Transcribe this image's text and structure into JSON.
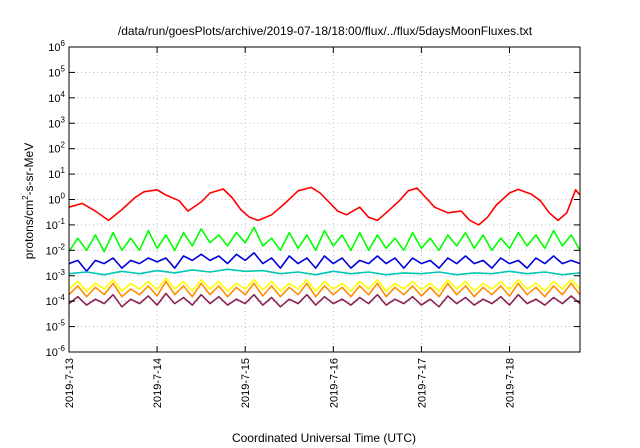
{
  "chart_data": {
    "type": "line",
    "title": "/data/run/goesPlots/archive/2019-07-18/18:00/flux/../flux/5daysMoonFluxes.txt",
    "xlabel": "Coordinated Universal Time (UTC)",
    "ylabel": "protons/cm2-s-sr-MeV",
    "ylabel_parts": {
      "pre": "protons/cm",
      "sup": "2",
      "post": "-s-sr-MeV"
    },
    "yscale": "log",
    "ylim": [
      1e-06,
      1000000.0
    ],
    "xlim": [
      0,
      5.8
    ],
    "grid": true,
    "x_unit": "days since 2019-7-13 00:00 UTC",
    "categories": [
      "2019-7-13",
      "2019-7-14",
      "2019-7-15",
      "2019-7-16",
      "2019-7-17",
      "2019-7-18"
    ],
    "y_ticks": [
      {
        "base": "10",
        "exp": "-6",
        "value": 1e-06
      },
      {
        "base": "10",
        "exp": "-5",
        "value": 1e-05
      },
      {
        "base": "10",
        "exp": "-4",
        "value": 0.0001
      },
      {
        "base": "10",
        "exp": "-3",
        "value": 0.001
      },
      {
        "base": "10",
        "exp": "-2",
        "value": 0.01
      },
      {
        "base": "10",
        "exp": "-1",
        "value": 0.1
      },
      {
        "base": "10",
        "exp": "0",
        "value": 1
      },
      {
        "base": "10",
        "exp": "1",
        "value": 10
      },
      {
        "base": "10",
        "exp": "2",
        "value": 100
      },
      {
        "base": "10",
        "exp": "3",
        "value": 1000
      },
      {
        "base": "10",
        "exp": "4",
        "value": 10000
      },
      {
        "base": "10",
        "exp": "5",
        "value": 100000
      },
      {
        "base": "10",
        "exp": "6",
        "value": 1000000
      }
    ],
    "series": [
      {
        "color": "#ff0000",
        "x": [
          0,
          0.15,
          0.3,
          0.45,
          0.6,
          0.75,
          0.85,
          1.0,
          1.1,
          1.25,
          1.35,
          1.5,
          1.6,
          1.75,
          1.85,
          1.95,
          2.05,
          2.15,
          2.3,
          2.45,
          2.6,
          2.75,
          2.85,
          2.95,
          3.05,
          3.15,
          3.3,
          3.4,
          3.5,
          3.6,
          3.75,
          3.85,
          3.95,
          4.05,
          4.15,
          4.3,
          4.45,
          4.55,
          4.65,
          4.75,
          4.85,
          5.0,
          5.1,
          5.25,
          5.35,
          5.45,
          5.55,
          5.65,
          5.75,
          5.8
        ],
        "y": [
          0.5,
          0.7,
          0.35,
          0.15,
          0.4,
          1.2,
          2.0,
          2.4,
          1.5,
          0.9,
          0.35,
          0.8,
          1.8,
          2.6,
          1.2,
          0.4,
          0.2,
          0.15,
          0.25,
          0.7,
          2.2,
          3.0,
          1.8,
          0.8,
          0.35,
          0.25,
          0.5,
          0.2,
          0.15,
          0.3,
          0.9,
          2.2,
          2.8,
          1.2,
          0.5,
          0.3,
          0.35,
          0.15,
          0.1,
          0.2,
          0.6,
          1.8,
          2.5,
          1.6,
          0.9,
          0.3,
          0.15,
          0.3,
          2.4,
          1.5
        ]
      },
      {
        "color": "#00ff00",
        "x": [
          0,
          0.1,
          0.2,
          0.3,
          0.4,
          0.5,
          0.6,
          0.7,
          0.8,
          0.9,
          1.0,
          1.1,
          1.2,
          1.3,
          1.4,
          1.5,
          1.6,
          1.7,
          1.8,
          1.9,
          2.0,
          2.1,
          2.2,
          2.3,
          2.4,
          2.5,
          2.6,
          2.7,
          2.8,
          2.9,
          3.0,
          3.1,
          3.2,
          3.3,
          3.4,
          3.5,
          3.6,
          3.7,
          3.8,
          3.9,
          4.0,
          4.1,
          4.2,
          4.3,
          4.4,
          4.5,
          4.6,
          4.7,
          4.8,
          4.9,
          5.0,
          5.1,
          5.2,
          5.3,
          5.4,
          5.5,
          5.6,
          5.7,
          5.8
        ],
        "y": [
          0.009,
          0.03,
          0.01,
          0.04,
          0.009,
          0.05,
          0.01,
          0.03,
          0.01,
          0.06,
          0.012,
          0.04,
          0.01,
          0.05,
          0.015,
          0.07,
          0.02,
          0.04,
          0.015,
          0.05,
          0.02,
          0.08,
          0.015,
          0.03,
          0.01,
          0.05,
          0.012,
          0.04,
          0.01,
          0.06,
          0.015,
          0.04,
          0.01,
          0.05,
          0.01,
          0.04,
          0.012,
          0.03,
          0.01,
          0.05,
          0.012,
          0.03,
          0.01,
          0.04,
          0.015,
          0.05,
          0.012,
          0.04,
          0.01,
          0.03,
          0.012,
          0.05,
          0.015,
          0.04,
          0.012,
          0.06,
          0.015,
          0.04,
          0.01
        ]
      },
      {
        "color": "#0000dd",
        "x": [
          0,
          0.1,
          0.2,
          0.3,
          0.4,
          0.5,
          0.6,
          0.7,
          0.8,
          0.9,
          1.0,
          1.1,
          1.2,
          1.3,
          1.4,
          1.5,
          1.6,
          1.7,
          1.8,
          1.9,
          2.0,
          2.1,
          2.2,
          2.3,
          2.4,
          2.5,
          2.6,
          2.7,
          2.8,
          2.9,
          3.0,
          3.1,
          3.2,
          3.3,
          3.4,
          3.5,
          3.6,
          3.7,
          3.8,
          3.9,
          4.0,
          4.1,
          4.2,
          4.3,
          4.4,
          4.5,
          4.6,
          4.7,
          4.8,
          4.9,
          5.0,
          5.1,
          5.2,
          5.3,
          5.4,
          5.5,
          5.6,
          5.7,
          5.8
        ],
        "y": [
          0.003,
          0.004,
          0.0015,
          0.004,
          0.003,
          0.005,
          0.002,
          0.004,
          0.003,
          0.005,
          0.0035,
          0.005,
          0.002,
          0.006,
          0.004,
          0.007,
          0.004,
          0.006,
          0.003,
          0.007,
          0.004,
          0.008,
          0.003,
          0.005,
          0.002,
          0.006,
          0.003,
          0.005,
          0.002,
          0.006,
          0.003,
          0.005,
          0.002,
          0.004,
          0.003,
          0.006,
          0.003,
          0.005,
          0.002,
          0.005,
          0.003,
          0.004,
          0.002,
          0.005,
          0.003,
          0.006,
          0.003,
          0.004,
          0.002,
          0.005,
          0.003,
          0.004,
          0.002,
          0.005,
          0.003,
          0.006,
          0.003,
          0.004,
          0.003
        ]
      },
      {
        "color": "#00c8b4",
        "x": [
          0,
          0.2,
          0.4,
          0.6,
          0.8,
          1.0,
          1.2,
          1.4,
          1.6,
          1.8,
          2.0,
          2.2,
          2.4,
          2.6,
          2.8,
          3.0,
          3.2,
          3.4,
          3.6,
          3.8,
          4.0,
          4.2,
          4.4,
          4.6,
          4.8,
          5.0,
          5.2,
          5.4,
          5.6,
          5.8
        ],
        "y": [
          0.0012,
          0.0014,
          0.0011,
          0.0015,
          0.0012,
          0.0016,
          0.0013,
          0.0017,
          0.0014,
          0.0018,
          0.0015,
          0.0016,
          0.0012,
          0.0014,
          0.0011,
          0.0015,
          0.0012,
          0.0014,
          0.0011,
          0.0013,
          0.0012,
          0.0014,
          0.0011,
          0.0013,
          0.0012,
          0.0015,
          0.0012,
          0.0014,
          0.0011,
          0.0013
        ]
      },
      {
        "color": "#ffff00",
        "x": [
          0,
          0.1,
          0.2,
          0.3,
          0.4,
          0.5,
          0.6,
          0.7,
          0.8,
          0.9,
          1.0,
          1.1,
          1.2,
          1.3,
          1.4,
          1.5,
          1.6,
          1.7,
          1.8,
          1.9,
          2.0,
          2.1,
          2.2,
          2.3,
          2.4,
          2.5,
          2.6,
          2.7,
          2.8,
          2.9,
          3.0,
          3.1,
          3.2,
          3.3,
          3.4,
          3.5,
          3.6,
          3.7,
          3.8,
          3.9,
          4.0,
          4.1,
          4.2,
          4.3,
          4.4,
          4.5,
          4.6,
          4.7,
          4.8,
          4.9,
          5.0,
          5.1,
          5.2,
          5.3,
          5.4,
          5.5,
          5.6,
          5.7,
          5.8
        ],
        "y": [
          0.0003,
          0.0006,
          0.00025,
          0.0005,
          0.0003,
          0.0007,
          0.00025,
          0.0005,
          0.0003,
          0.0006,
          0.00028,
          0.0008,
          0.0003,
          0.0006,
          0.00025,
          0.0007,
          0.0003,
          0.0006,
          0.00025,
          0.0005,
          0.0003,
          0.0007,
          0.00028,
          0.0006,
          0.00025,
          0.0005,
          0.0003,
          0.0007,
          0.00025,
          0.0006,
          0.0003,
          0.0005,
          0.00025,
          0.0006,
          0.0003,
          0.0007,
          0.00025,
          0.0005,
          0.0003,
          0.0006,
          0.00028,
          0.0005,
          0.00025,
          0.0007,
          0.0003,
          0.0006,
          0.00025,
          0.0005,
          0.0003,
          0.0006,
          0.00028,
          0.0007,
          0.0003,
          0.0005,
          0.00025,
          0.0006,
          0.0003,
          0.0007,
          0.0003
        ]
      },
      {
        "color": "#ff8c00",
        "x": [
          0,
          0.1,
          0.2,
          0.3,
          0.4,
          0.5,
          0.6,
          0.7,
          0.8,
          0.9,
          1.0,
          1.1,
          1.2,
          1.3,
          1.4,
          1.5,
          1.6,
          1.7,
          1.8,
          1.9,
          2.0,
          2.1,
          2.2,
          2.3,
          2.4,
          2.5,
          2.6,
          2.7,
          2.8,
          2.9,
          3.0,
          3.1,
          3.2,
          3.3,
          3.4,
          3.5,
          3.6,
          3.7,
          3.8,
          3.9,
          4.0,
          4.1,
          4.2,
          4.3,
          4.4,
          4.5,
          4.6,
          4.7,
          4.8,
          4.9,
          5.0,
          5.1,
          5.2,
          5.3,
          5.4,
          5.5,
          5.6,
          5.7,
          5.8
        ],
        "y": [
          0.00018,
          0.0004,
          0.00015,
          0.00035,
          0.00018,
          0.0005,
          0.00015,
          0.0003,
          0.00018,
          0.0004,
          0.00016,
          0.0006,
          0.00018,
          0.0004,
          0.00015,
          0.0005,
          0.00018,
          0.0004,
          0.00015,
          0.00035,
          0.00018,
          0.0005,
          0.00016,
          0.0004,
          0.00015,
          0.00035,
          0.00018,
          0.0005,
          0.00015,
          0.0004,
          0.00018,
          0.00035,
          0.00015,
          0.0004,
          0.00018,
          0.0005,
          0.00015,
          0.00035,
          0.00018,
          0.0004,
          0.00016,
          0.00035,
          0.00015,
          0.0005,
          0.00018,
          0.0004,
          0.00015,
          0.00035,
          0.00018,
          0.0004,
          0.00016,
          0.0005,
          0.00018,
          0.00035,
          0.00015,
          0.0004,
          0.00018,
          0.0005,
          0.00018
        ]
      },
      {
        "color": "#8b2252",
        "x": [
          0,
          0.1,
          0.2,
          0.3,
          0.4,
          0.5,
          0.6,
          0.7,
          0.8,
          0.9,
          1.0,
          1.1,
          1.2,
          1.3,
          1.4,
          1.5,
          1.6,
          1.7,
          1.8,
          1.9,
          2.0,
          2.1,
          2.2,
          2.3,
          2.4,
          2.5,
          2.6,
          2.7,
          2.8,
          2.9,
          3.0,
          3.1,
          3.2,
          3.3,
          3.4,
          3.5,
          3.6,
          3.7,
          3.8,
          3.9,
          4.0,
          4.1,
          4.2,
          4.3,
          4.4,
          4.5,
          4.6,
          4.7,
          4.8,
          4.9,
          5.0,
          5.1,
          5.2,
          5.3,
          5.4,
          5.5,
          5.6,
          5.7,
          5.8
        ],
        "y": [
          8e-05,
          0.00015,
          7e-05,
          0.00012,
          8e-05,
          0.00018,
          6e-05,
          0.00012,
          8e-05,
          0.00016,
          7e-05,
          0.0002,
          8e-05,
          0.00014,
          7e-05,
          0.00018,
          8e-05,
          0.00015,
          7e-05,
          0.00012,
          8e-05,
          0.00018,
          7e-05,
          0.00014,
          6e-05,
          0.00012,
          8e-05,
          0.00018,
          7e-05,
          0.00015,
          8e-05,
          0.00012,
          7e-05,
          0.00014,
          8e-05,
          0.00018,
          7e-05,
          0.00012,
          8e-05,
          0.00015,
          7e-05,
          0.00012,
          6e-05,
          0.00016,
          8e-05,
          0.00014,
          7e-05,
          0.00012,
          8e-05,
          0.00015,
          7e-05,
          0.00018,
          8e-05,
          0.00012,
          7e-05,
          0.00014,
          8e-05,
          0.00016,
          8e-05
        ]
      }
    ]
  }
}
